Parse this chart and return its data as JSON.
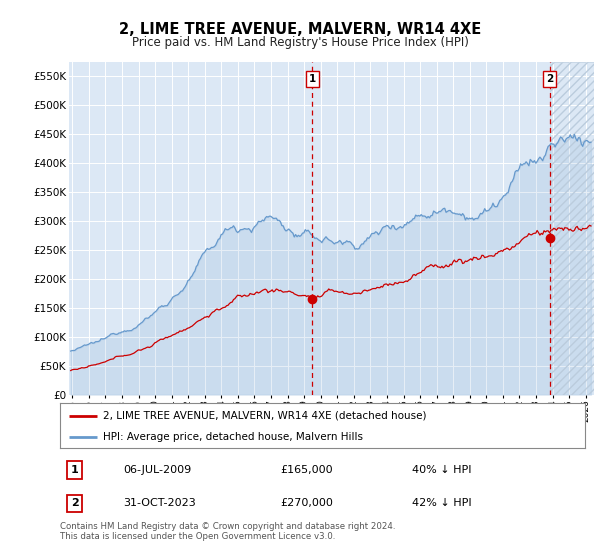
{
  "title": "2, LIME TREE AVENUE, MALVERN, WR14 4XE",
  "subtitle": "Price paid vs. HM Land Registry's House Price Index (HPI)",
  "legend_red": "2, LIME TREE AVENUE, MALVERN, WR14 4XE (detached house)",
  "legend_blue": "HPI: Average price, detached house, Malvern Hills",
  "footnote": "Contains HM Land Registry data © Crown copyright and database right 2024.\nThis data is licensed under the Open Government Licence v3.0.",
  "transaction1_date": "06-JUL-2009",
  "transaction1_price": "£165,000",
  "transaction1_hpi": "40% ↓ HPI",
  "transaction2_date": "31-OCT-2023",
  "transaction2_price": "£270,000",
  "transaction2_hpi": "42% ↓ HPI",
  "ylim": [
    0,
    575000
  ],
  "yticks": [
    0,
    50000,
    100000,
    150000,
    200000,
    250000,
    300000,
    350000,
    400000,
    450000,
    500000,
    550000
  ],
  "plot_bg_color": "#dce8f5",
  "red_color": "#cc0000",
  "blue_color": "#6699cc",
  "vline_color": "#cc0000",
  "marker1_x": 2009.5,
  "marker1_y": 165000,
  "marker2_x": 2023.83,
  "marker2_y": 270000,
  "xmin": 1994.8,
  "xmax": 2026.5
}
